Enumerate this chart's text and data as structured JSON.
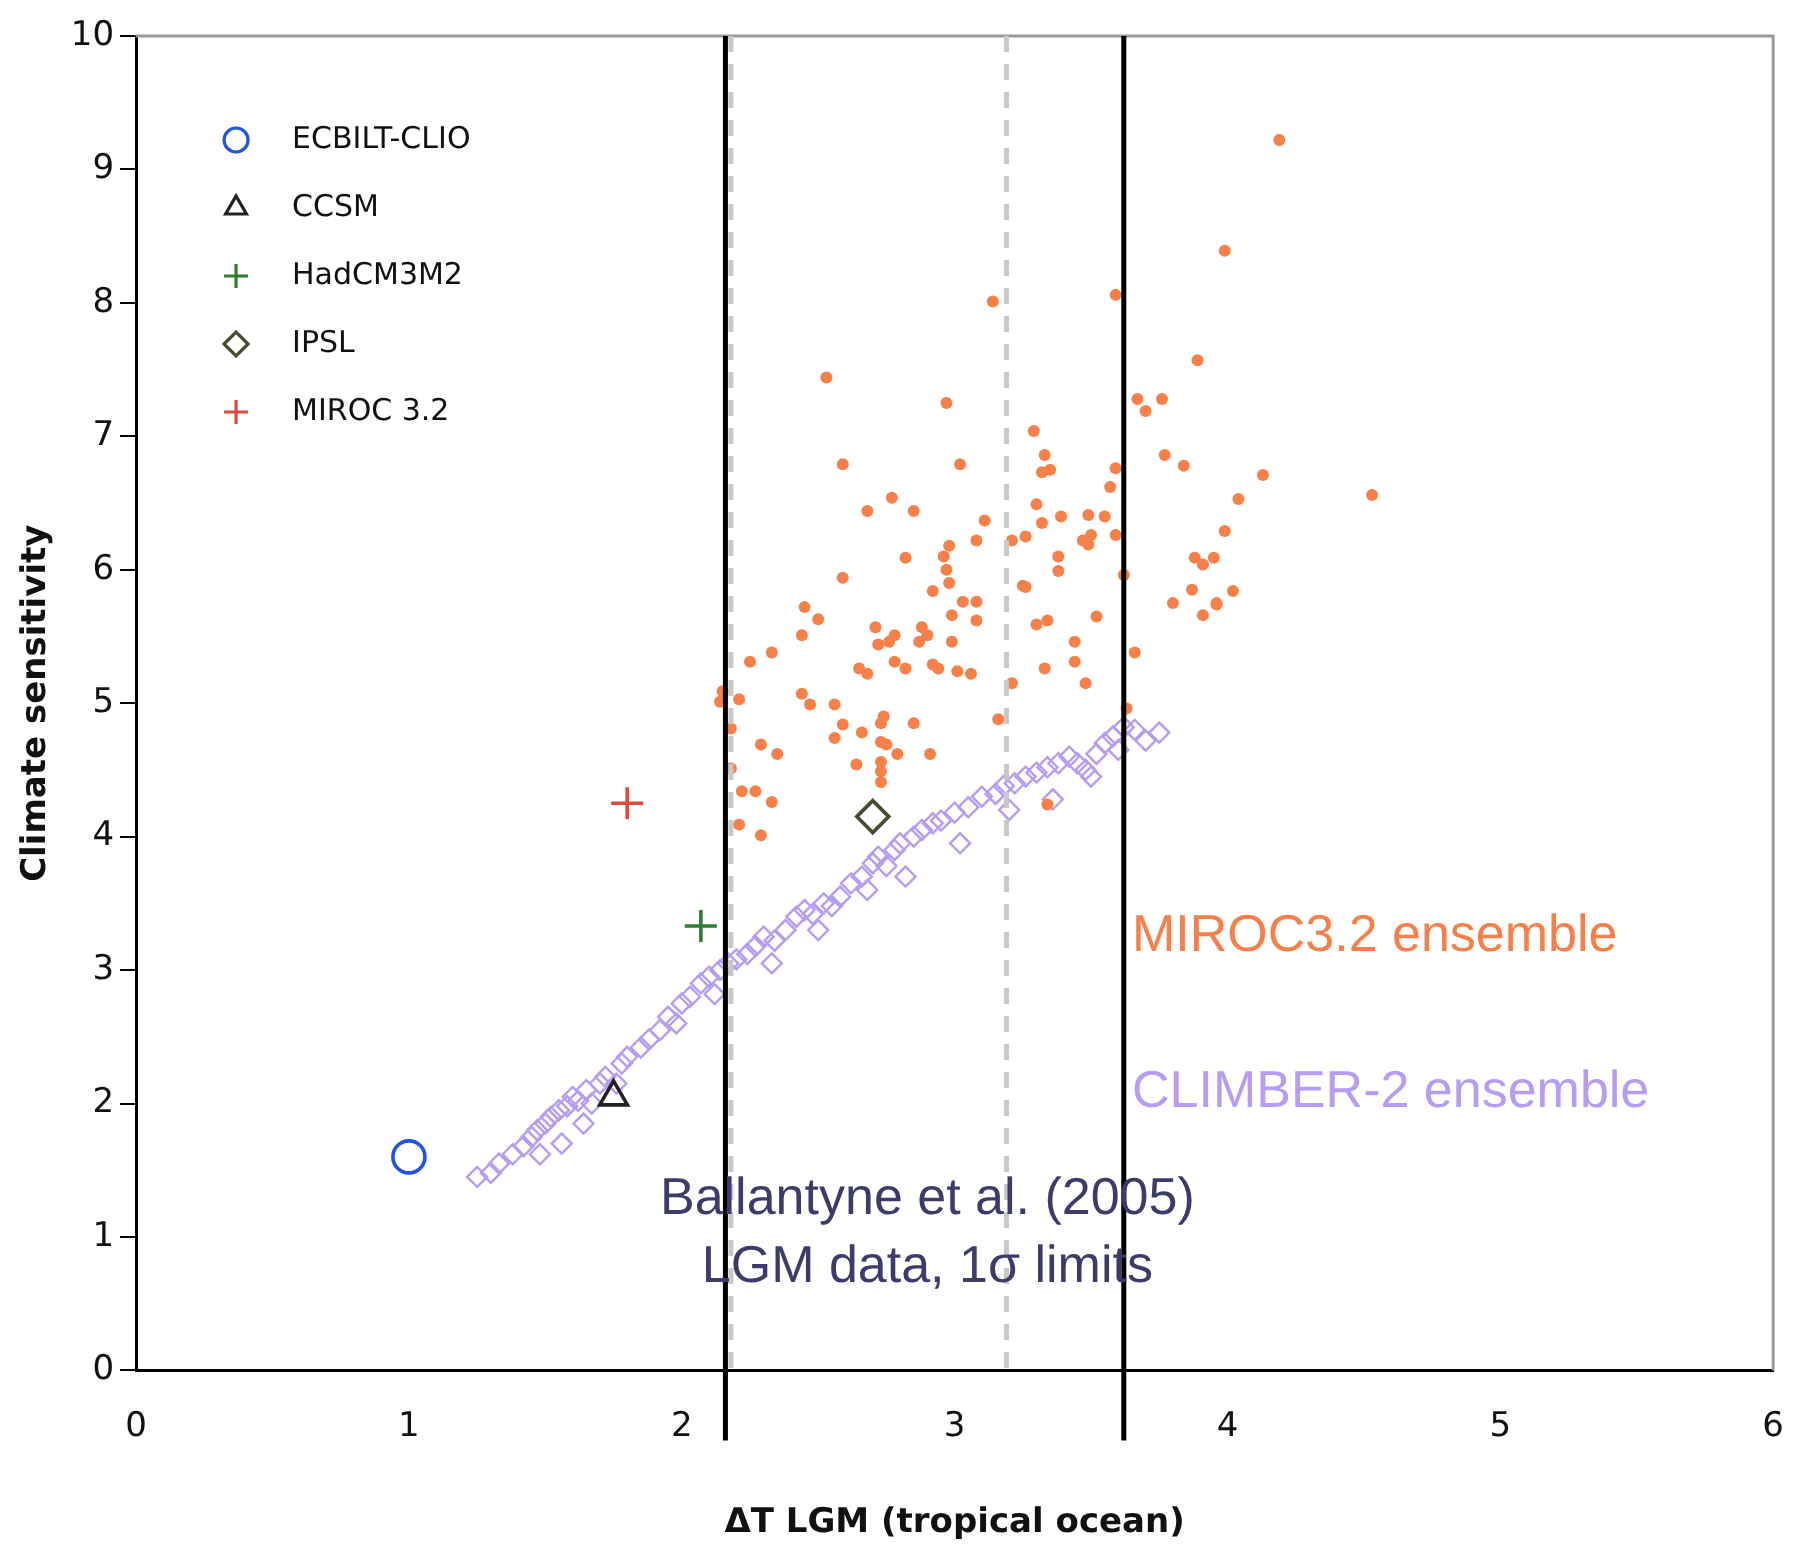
{
  "chart_data": {
    "type": "scatter",
    "xlabel": "ΔT LGM (tropical ocean)",
    "ylabel": "Climate sensitivity",
    "xlim": [
      0,
      6
    ],
    "xticks": [
      0,
      1,
      2,
      3,
      4,
      5,
      6
    ],
    "ylim": [
      0,
      10
    ],
    "yticks": [
      0,
      1,
      2,
      3,
      4,
      5,
      6,
      7,
      8,
      9,
      10
    ],
    "grid": false,
    "legend": "top left",
    "series": [
      {
        "name": "ECBILT-CLIO",
        "color": "#2255dd",
        "marker": "circle",
        "x": [
          1.0
        ],
        "values": [
          1.6
        ]
      },
      {
        "name": "CCSM",
        "color": "#222222",
        "marker": "triangle",
        "x": [
          1.75
        ],
        "values": [
          2.05
        ]
      },
      {
        "name": "HadCM3M2",
        "color": "#2e7d32",
        "marker": "cross",
        "x": [
          2.07
        ],
        "values": [
          3.33
        ]
      },
      {
        "name": "IPSL",
        "color": "#4a4a30",
        "marker": "diamond",
        "x": [
          2.7
        ],
        "values": [
          4.15
        ]
      },
      {
        "name": "MIROC 3.2",
        "color": "#e04a3a",
        "marker": "cross",
        "x": [
          1.8
        ],
        "values": [
          4.25
        ]
      },
      {
        "name": "MIROC3.2 ensemble",
        "color": "#f5804a",
        "marker": "circle",
        "x": [
          4.19,
          3.99,
          3.89,
          3.14,
          3.59,
          2.53,
          2.97,
          3.67,
          3.7,
          3.76,
          3.84,
          3.77,
          3.29,
          3.02,
          2.59,
          2.77,
          3.32,
          3.59,
          3.57,
          3.49,
          3.32,
          3.26,
          3.59,
          2.68,
          4.53,
          4.13,
          4.04,
          3.99,
          3.91,
          3.87,
          3.8,
          4.02,
          3.96,
          3.95,
          2.82,
          2.96,
          2.97,
          2.98,
          2.92,
          3.03,
          3.08,
          3.38,
          3.38,
          3.26,
          3.52,
          3.3,
          3.34,
          3.44,
          3.44,
          3.33,
          3.48,
          3.21,
          3.08,
          2.99,
          2.99,
          2.88,
          2.9,
          2.87,
          2.78,
          2.76,
          2.72,
          2.71,
          2.78,
          2.82,
          2.92,
          2.94,
          3.01,
          3.06,
          2.65,
          2.68,
          2.59,
          2.45,
          2.5,
          2.44,
          2.33,
          2.25,
          2.15,
          2.14,
          2.21,
          2.18,
          2.44,
          2.47,
          2.56,
          2.59,
          2.66,
          2.73,
          2.74,
          2.85,
          2.56,
          2.73,
          2.75,
          2.79,
          2.91,
          2.73,
          2.64,
          2.73,
          2.73,
          2.29,
          2.35,
          2.18,
          2.22,
          2.27,
          2.33,
          2.21,
          2.29,
          3.16,
          3.34,
          3.63,
          3.66,
          3.91,
          3.96,
          3.62,
          2.85,
          3.33,
          3.35,
          3.3,
          3.39,
          3.88,
          3.55,
          3.5,
          3.49,
          3.47,
          3.21,
          3.08,
          3.11,
          2.98,
          3.25
        ],
        "values": [
          9.22,
          8.39,
          7.57,
          8.01,
          8.06,
          7.44,
          7.25,
          7.28,
          7.19,
          7.28,
          6.78,
          6.86,
          7.04,
          6.79,
          6.79,
          6.54,
          6.73,
          6.76,
          6.62,
          6.41,
          6.35,
          6.25,
          6.26,
          6.44,
          6.56,
          6.71,
          6.53,
          6.29,
          6.04,
          5.85,
          5.75,
          5.84,
          5.74,
          6.09,
          6.09,
          6.1,
          6.0,
          5.9,
          5.84,
          5.76,
          5.76,
          6.1,
          5.99,
          5.87,
          5.65,
          5.59,
          5.62,
          5.46,
          5.31,
          5.26,
          5.15,
          5.15,
          5.62,
          5.66,
          5.46,
          5.57,
          5.51,
          5.46,
          5.51,
          5.46,
          5.44,
          5.57,
          5.31,
          5.26,
          5.29,
          5.26,
          5.24,
          5.22,
          5.26,
          5.22,
          5.94,
          5.72,
          5.63,
          5.51,
          5.38,
          5.31,
          5.09,
          5.01,
          5.03,
          4.81,
          5.07,
          4.99,
          4.99,
          4.84,
          4.78,
          4.85,
          4.9,
          4.85,
          4.74,
          4.71,
          4.69,
          4.62,
          4.62,
          4.56,
          4.54,
          4.49,
          4.41,
          4.69,
          4.62,
          4.51,
          4.34,
          4.34,
          4.26,
          4.09,
          4.01,
          4.88,
          4.24,
          4.96,
          5.38,
          5.66,
          5.75,
          5.96,
          6.44,
          6.86,
          6.75,
          6.49,
          6.4,
          6.09,
          6.4,
          6.26,
          6.19,
          6.22,
          6.22,
          6.22,
          6.37,
          6.18,
          5.88
        ]
      },
      {
        "name": "CLIMBER-2 ensemble",
        "color": "#b79cf2",
        "marker": "diamond",
        "x": [
          1.25,
          1.3,
          1.33,
          1.38,
          1.42,
          1.45,
          1.47,
          1.5,
          1.52,
          1.55,
          1.58,
          1.6,
          1.62,
          1.65,
          1.67,
          1.7,
          1.72,
          1.78,
          1.8,
          1.85,
          1.88,
          1.92,
          1.95,
          2.0,
          2.03,
          2.07,
          2.1,
          2.14,
          2.17,
          2.2,
          2.24,
          2.27,
          2.3,
          2.34,
          2.38,
          2.42,
          2.45,
          2.48,
          2.52,
          2.55,
          2.58,
          2.62,
          2.66,
          2.7,
          2.72,
          2.75,
          2.78,
          2.8,
          2.85,
          2.88,
          2.92,
          2.95,
          3.0,
          3.05,
          3.1,
          3.15,
          3.18,
          3.22,
          3.26,
          3.3,
          3.34,
          3.38,
          3.42,
          3.45,
          3.48,
          3.52,
          3.55,
          3.58,
          3.62,
          3.66,
          3.7,
          3.75,
          1.48,
          1.56,
          1.64,
          1.76,
          1.98,
          2.12,
          2.33,
          2.5,
          2.68,
          2.82,
          3.02,
          3.2,
          3.36,
          3.5,
          3.6
        ],
        "values": [
          1.45,
          1.48,
          1.55,
          1.62,
          1.68,
          1.75,
          1.8,
          1.85,
          1.9,
          1.95,
          1.98,
          2.05,
          2.02,
          2.1,
          2.0,
          2.15,
          2.2,
          2.3,
          2.35,
          2.42,
          2.48,
          2.55,
          2.65,
          2.75,
          2.8,
          2.9,
          2.95,
          3.0,
          3.05,
          3.08,
          3.12,
          3.18,
          3.25,
          3.22,
          3.3,
          3.4,
          3.45,
          3.42,
          3.5,
          3.48,
          3.55,
          3.65,
          3.7,
          3.8,
          3.85,
          3.78,
          3.9,
          3.95,
          4.0,
          4.05,
          4.1,
          4.12,
          4.18,
          4.22,
          4.3,
          4.32,
          4.38,
          4.4,
          4.45,
          4.48,
          4.52,
          4.55,
          4.6,
          4.55,
          4.5,
          4.62,
          4.7,
          4.75,
          4.82,
          4.8,
          4.72,
          4.78,
          1.62,
          1.7,
          1.85,
          2.15,
          2.6,
          2.82,
          3.05,
          3.3,
          3.6,
          3.7,
          3.95,
          4.2,
          4.28,
          4.45,
          4.65
        ]
      }
    ],
    "ref_lines": [
      {
        "axis": "x",
        "value": 2.18,
        "color": "#c8c8c8",
        "line_style": "dashed"
      },
      {
        "axis": "x",
        "value": 3.19,
        "color": "#c8c8c8",
        "line_style": "dashed"
      },
      {
        "axis": "x",
        "value": 2.16,
        "color": "#000000",
        "line_style": "solid"
      },
      {
        "axis": "x",
        "value": 3.62,
        "color": "#000000",
        "line_style": "solid"
      }
    ],
    "annotations": [
      "Ballantyne et al. (2005)",
      "LGM data, 1σ limits"
    ]
  }
}
